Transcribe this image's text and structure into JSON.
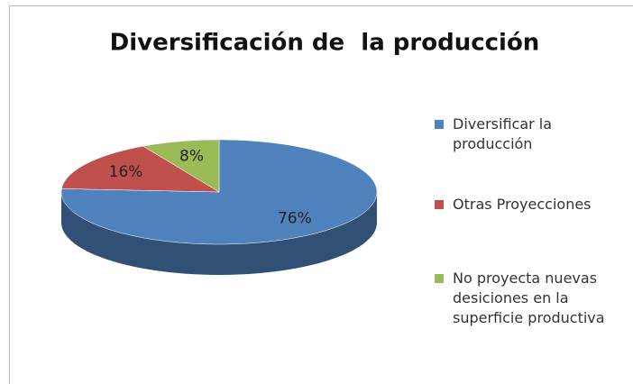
{
  "chart_data": {
    "type": "pie",
    "title": "Diversificación de  la producción",
    "categories": [
      "Diversificar la producción",
      "Otras Proyecciones",
      "No proyecta nuevas desiciones en la superficie productiva"
    ],
    "values": [
      76,
      16,
      8
    ],
    "value_labels": [
      "76%",
      "16%",
      "8%"
    ],
    "colors": [
      "#4f81bd",
      "#c0504d",
      "#9bbb59"
    ],
    "legend": "right"
  }
}
